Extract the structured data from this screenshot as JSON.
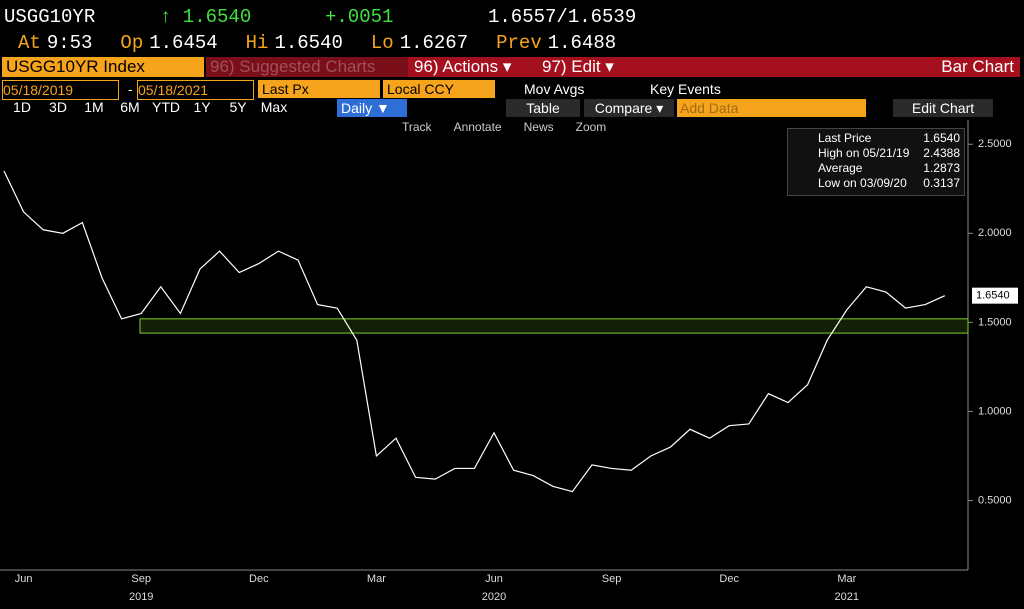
{
  "header": {
    "ticker": "USGG10YR",
    "last": "↑ 1.6540",
    "change": "+.0051",
    "bidask": "1.6557/1.6539",
    "quote": [
      {
        "k": "At",
        "v": "9:53"
      },
      {
        "k": "Op",
        "v": "1.6454"
      },
      {
        "k": "Hi",
        "v": "1.6540"
      },
      {
        "k": "Lo",
        "v": "1.6267"
      },
      {
        "k": "Prev",
        "v": "1.6488"
      }
    ]
  },
  "toolbar": {
    "security": "USGG10YR Index",
    "suggested": "96) Suggested Charts",
    "actions": "96) Actions ▾",
    "edit": "97) Edit ▾",
    "chart_kind": "Bar Chart",
    "start": "05/18/2019",
    "dash": "-",
    "end": "05/18/2021",
    "field": "Last Px",
    "ccy": "Local CCY",
    "mov_avgs": "Mov Avgs",
    "key_events": "Key Events",
    "ranges": [
      "1D",
      "3D",
      "1M",
      "6M",
      "YTD",
      "1Y",
      "5Y",
      "Max"
    ],
    "period": "Daily ▼",
    "table": "Table",
    "compare": "Compare ▾",
    "add_data": "Add Data",
    "edit_chart": "Edit Chart",
    "tools": [
      "Track",
      "Annotate",
      "News",
      "Zoom"
    ]
  },
  "legend": [
    {
      "label": "Last Price",
      "value": "1.6540"
    },
    {
      "label": "High on 05/21/19",
      "value": "2.4388"
    },
    {
      "label": "Average",
      "value": "1.2873"
    },
    {
      "label": "Low on 03/09/20",
      "value": "0.3137"
    }
  ],
  "chart_data": {
    "type": "line",
    "color": "#ffffff",
    "grid": false,
    "categories": [
      null,
      "Jun",
      null,
      null,
      null,
      null,
      null,
      "Sep",
      null,
      null,
      null,
      null,
      null,
      "Dec",
      null,
      null,
      null,
      null,
      null,
      "Mar",
      null,
      null,
      null,
      null,
      null,
      "Jun",
      null,
      null,
      null,
      null,
      null,
      "Sep",
      null,
      null,
      null,
      null,
      null,
      "Dec",
      null,
      null,
      null,
      null,
      null,
      "Mar",
      null,
      null,
      null,
      null,
      null
    ],
    "years": [
      null,
      null,
      null,
      null,
      null,
      null,
      null,
      "2019",
      null,
      null,
      null,
      null,
      null,
      null,
      null,
      null,
      null,
      null,
      null,
      null,
      null,
      null,
      null,
      null,
      null,
      "2020",
      null,
      null,
      null,
      null,
      null,
      null,
      null,
      null,
      null,
      null,
      null,
      null,
      null,
      null,
      null,
      null,
      null,
      "2021",
      null,
      null,
      null,
      null,
      null
    ],
    "values": [
      2.35,
      2.12,
      2.02,
      2.0,
      2.06,
      1.75,
      1.52,
      1.55,
      1.7,
      1.55,
      1.8,
      1.9,
      1.78,
      1.83,
      1.9,
      1.85,
      1.6,
      1.58,
      1.4,
      0.75,
      0.85,
      0.63,
      0.62,
      0.68,
      0.68,
      0.88,
      0.67,
      0.64,
      0.58,
      0.55,
      0.7,
      0.68,
      0.67,
      0.75,
      0.8,
      0.9,
      0.85,
      0.92,
      0.93,
      1.1,
      1.05,
      1.15,
      1.4,
      1.57,
      1.7,
      1.67,
      1.58,
      1.6,
      1.65
    ],
    "band": [
      1.44,
      1.52
    ],
    "band_color": "#7fd12a",
    "last_label": "1.6540",
    "ylim": [
      0.11,
      2.58
    ],
    "yticks": [
      {
        "value": 0.5,
        "label": "0.5000"
      },
      {
        "value": 1,
        "label": "1.0000"
      },
      {
        "value": 1.5,
        "label": "1.5000"
      },
      {
        "value": 2,
        "label": "2.0000"
      },
      {
        "value": 2.5,
        "label": "2.5000"
      }
    ]
  }
}
